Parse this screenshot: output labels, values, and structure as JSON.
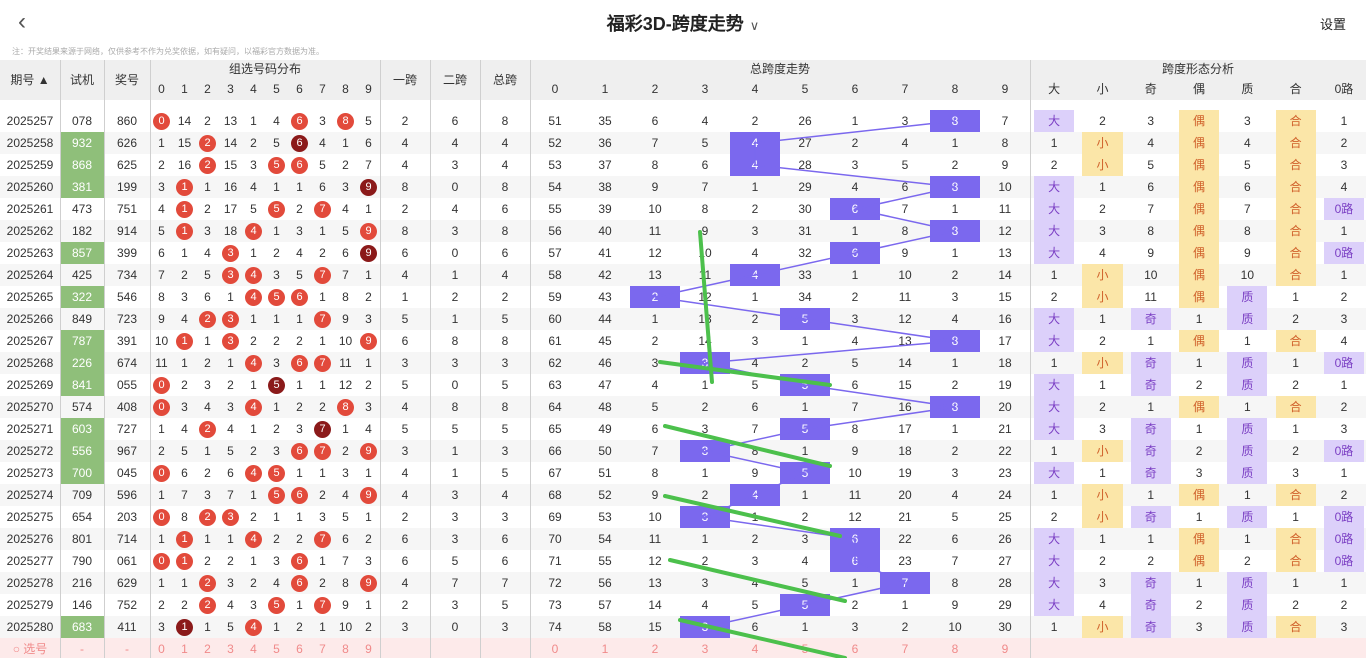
{
  "header": {
    "title": "福彩3D-跨度走势",
    "settings": "设置",
    "back": "<"
  },
  "notice": "注：开奖结果来源于网络，仅供参考不作为兑奖依据，如有疑问，以福彩官方数据为准。",
  "columns": {
    "period": "期号",
    "trial": "试机",
    "prize": "奖号",
    "group_dist": "组选号码分布",
    "span1": "一跨",
    "span2": "二跨",
    "total_span": "总跨",
    "total_trend": "总跨度走势",
    "shape": "跨度形态分析",
    "digits": [
      "0",
      "1",
      "2",
      "3",
      "4",
      "5",
      "6",
      "7",
      "8",
      "9"
    ],
    "shape_cols": [
      "大",
      "小",
      "奇",
      "偶",
      "质",
      "合",
      "0路"
    ]
  },
  "colors": {
    "ball_red": "#e24a3b",
    "ball_dark": "#8b1a1a",
    "trial_green": "#8fbf7a",
    "span_mark": "#7b68ee",
    "shape_purple": "#dcd0fa",
    "shape_yellow": "#fbe6a8",
    "arrow_green": "#4cc04c"
  },
  "rows": [
    {
      "p": "2025257",
      "t": "078",
      "z": "860",
      "tg": false,
      "d": [
        0,
        14,
        2,
        13,
        1,
        4,
        6,
        3,
        8,
        5
      ],
      "s1": 2,
      "s2": 6,
      "ts": 8,
      "tr": [
        51,
        35,
        6,
        4,
        2,
        26,
        1,
        3,
        8,
        7
      ],
      "sh": [
        "大",
        "2",
        "3",
        "偶",
        "3",
        "合",
        "1"
      ]
    },
    {
      "p": "2025258",
      "t": "932",
      "z": "626",
      "tg": true,
      "d": [
        1,
        15,
        2,
        14,
        2,
        5,
        6,
        4,
        1,
        6
      ],
      "s1": 4,
      "s2": 4,
      "ts": 4,
      "tr": [
        52,
        36,
        7,
        5,
        4,
        27,
        2,
        4,
        1,
        8
      ],
      "sh": [
        "1",
        "小",
        "4",
        "偶",
        "4",
        "合",
        "2"
      ]
    },
    {
      "p": "2025259",
      "t": "868",
      "z": "625",
      "tg": true,
      "d": [
        2,
        16,
        2,
        15,
        3,
        5,
        6,
        5,
        2,
        7
      ],
      "s1": 4,
      "s2": 3,
      "ts": 4,
      "tr": [
        53,
        37,
        8,
        6,
        4,
        28,
        3,
        5,
        2,
        9
      ],
      "sh": [
        "2",
        "小",
        "5",
        "偶",
        "5",
        "合",
        "3"
      ]
    },
    {
      "p": "2025260",
      "t": "381",
      "z": "199",
      "tg": true,
      "d": [
        3,
        1,
        1,
        16,
        4,
        1,
        1,
        6,
        3,
        9
      ],
      "s1": 8,
      "s2": 0,
      "ts": 8,
      "tr": [
        54,
        38,
        9,
        7,
        1,
        29,
        4,
        6,
        8,
        10
      ],
      "sh": [
        "大",
        "1",
        "6",
        "偶",
        "6",
        "合",
        "4"
      ]
    },
    {
      "p": "2025261",
      "t": "473",
      "z": "751",
      "tg": false,
      "d": [
        4,
        1,
        2,
        17,
        5,
        5,
        2,
        7,
        4,
        1
      ],
      "s1": 2,
      "s2": 4,
      "ts": 6,
      "tr": [
        55,
        39,
        10,
        8,
        2,
        30,
        6,
        7,
        1,
        11
      ],
      "sh": [
        "大",
        "2",
        "7",
        "偶",
        "7",
        "合",
        "0路"
      ]
    },
    {
      "p": "2025262",
      "t": "182",
      "z": "914",
      "tg": false,
      "d": [
        5,
        1,
        3,
        18,
        4,
        1,
        3,
        1,
        5,
        9
      ],
      "s1": 8,
      "s2": 3,
      "ts": 8,
      "tr": [
        56,
        40,
        11,
        9,
        3,
        31,
        1,
        8,
        8,
        12
      ],
      "sh": [
        "大",
        "3",
        "8",
        "偶",
        "8",
        "合",
        "1"
      ]
    },
    {
      "p": "2025263",
      "t": "857",
      "z": "399",
      "tg": true,
      "d": [
        6,
        1,
        4,
        3,
        1,
        2,
        4,
        2,
        6,
        9
      ],
      "s1": 6,
      "s2": 0,
      "ts": 6,
      "tr": [
        57,
        41,
        12,
        10,
        4,
        32,
        6,
        9,
        1,
        13
      ],
      "sh": [
        "大",
        "4",
        "9",
        "偶",
        "9",
        "合",
        "0路"
      ]
    },
    {
      "p": "2025264",
      "t": "425",
      "z": "734",
      "tg": false,
      "d": [
        7,
        2,
        5,
        3,
        4,
        3,
        5,
        7,
        7,
        1
      ],
      "s1": 4,
      "s2": 1,
      "ts": 4,
      "tr": [
        58,
        42,
        13,
        11,
        4,
        33,
        1,
        10,
        2,
        14
      ],
      "sh": [
        "1",
        "小",
        "10",
        "偶",
        "10",
        "合",
        "1"
      ]
    },
    {
      "p": "2025265",
      "t": "322",
      "z": "546",
      "tg": true,
      "d": [
        8,
        3,
        6,
        1,
        4,
        5,
        6,
        1,
        8,
        2
      ],
      "s1": 1,
      "s2": 2,
      "ts": 2,
      "tr": [
        59,
        43,
        2,
        12,
        1,
        34,
        2,
        11,
        3,
        15
      ],
      "sh": [
        "2",
        "小",
        "11",
        "偶",
        "质",
        "1",
        "2"
      ]
    },
    {
      "p": "2025266",
      "t": "849",
      "z": "723",
      "tg": false,
      "d": [
        9,
        4,
        2,
        3,
        1,
        1,
        1,
        7,
        9,
        3
      ],
      "s1": 5,
      "s2": 1,
      "ts": 5,
      "tr": [
        60,
        44,
        1,
        13,
        2,
        5,
        3,
        12,
        4,
        16
      ],
      "sh": [
        "大",
        "1",
        "奇",
        "1",
        "质",
        "2",
        "3"
      ]
    },
    {
      "p": "2025267",
      "t": "787",
      "z": "391",
      "tg": true,
      "d": [
        10,
        1,
        1,
        3,
        2,
        2,
        2,
        1,
        10,
        9
      ],
      "s1": 6,
      "s2": 8,
      "ts": 8,
      "tr": [
        61,
        45,
        2,
        14,
        3,
        1,
        4,
        13,
        8,
        17
      ],
      "sh": [
        "大",
        "2",
        "1",
        "偶",
        "1",
        "合",
        "4"
      ]
    },
    {
      "p": "2025268",
      "t": "226",
      "z": "674",
      "tg": true,
      "d": [
        11,
        1,
        2,
        1,
        4,
        3,
        6,
        7,
        11,
        1
      ],
      "s1": 3,
      "s2": 3,
      "ts": 3,
      "tr": [
        62,
        46,
        3,
        3,
        4,
        2,
        5,
        14,
        1,
        18
      ],
      "sh": [
        "1",
        "小",
        "奇",
        "1",
        "质",
        "1",
        "0路"
      ]
    },
    {
      "p": "2025269",
      "t": "841",
      "z": "055",
      "tg": true,
      "d": [
        0,
        2,
        3,
        2,
        1,
        5,
        1,
        1,
        12,
        2
      ],
      "s1": 5,
      "s2": 0,
      "ts": 5,
      "tr": [
        63,
        47,
        4,
        1,
        5,
        5,
        6,
        15,
        2,
        19
      ],
      "sh": [
        "大",
        "1",
        "奇",
        "2",
        "质",
        "2",
        "1"
      ]
    },
    {
      "p": "2025270",
      "t": "574",
      "z": "408",
      "tg": false,
      "d": [
        0,
        3,
        4,
        3,
        4,
        1,
        2,
        2,
        8,
        3
      ],
      "s1": 4,
      "s2": 8,
      "ts": 8,
      "tr": [
        64,
        48,
        5,
        2,
        6,
        1,
        7,
        16,
        8,
        20
      ],
      "sh": [
        "大",
        "2",
        "1",
        "偶",
        "1",
        "合",
        "2"
      ]
    },
    {
      "p": "2025271",
      "t": "603",
      "z": "727",
      "tg": true,
      "d": [
        1,
        4,
        2,
        4,
        1,
        2,
        3,
        7,
        1,
        4
      ],
      "s1": 5,
      "s2": 5,
      "ts": 5,
      "tr": [
        65,
        49,
        6,
        3,
        7,
        5,
        8,
        17,
        1,
        21
      ],
      "sh": [
        "大",
        "3",
        "奇",
        "1",
        "质",
        "1",
        "3"
      ]
    },
    {
      "p": "2025272",
      "t": "556",
      "z": "967",
      "tg": true,
      "d": [
        2,
        5,
        1,
        5,
        2,
        3,
        6,
        7,
        2,
        9
      ],
      "s1": 3,
      "s2": 1,
      "ts": 3,
      "tr": [
        66,
        50,
        7,
        3,
        8,
        1,
        9,
        18,
        2,
        22
      ],
      "sh": [
        "1",
        "小",
        "奇",
        "2",
        "质",
        "2",
        "0路"
      ]
    },
    {
      "p": "2025273",
      "t": "700",
      "z": "045",
      "tg": true,
      "d": [
        0,
        6,
        2,
        6,
        4,
        5,
        1,
        1,
        3,
        1
      ],
      "s1": 4,
      "s2": 1,
      "ts": 5,
      "tr": [
        67,
        51,
        8,
        1,
        9,
        5,
        10,
        19,
        3,
        23
      ],
      "sh": [
        "大",
        "1",
        "奇",
        "3",
        "质",
        "3",
        "1"
      ]
    },
    {
      "p": "2025274",
      "t": "709",
      "z": "596",
      "tg": false,
      "d": [
        1,
        7,
        3,
        7,
        1,
        5,
        6,
        2,
        4,
        9
      ],
      "s1": 4,
      "s2": 3,
      "ts": 4,
      "tr": [
        68,
        52,
        9,
        2,
        4,
        1,
        11,
        20,
        4,
        24
      ],
      "sh": [
        "1",
        "小",
        "1",
        "偶",
        "1",
        "合",
        "2"
      ]
    },
    {
      "p": "2025275",
      "t": "654",
      "z": "203",
      "tg": false,
      "d": [
        0,
        8,
        2,
        3,
        2,
        1,
        1,
        3,
        5,
        1
      ],
      "s1": 2,
      "s2": 3,
      "ts": 3,
      "tr": [
        69,
        53,
        10,
        3,
        1,
        2,
        12,
        21,
        5,
        25
      ],
      "sh": [
        "2",
        "小",
        "奇",
        "1",
        "质",
        "1",
        "0路"
      ]
    },
    {
      "p": "2025276",
      "t": "801",
      "z": "714",
      "tg": false,
      "d": [
        1,
        1,
        1,
        1,
        4,
        2,
        2,
        7,
        6,
        2
      ],
      "s1": 6,
      "s2": 3,
      "ts": 6,
      "tr": [
        70,
        54,
        11,
        1,
        2,
        3,
        6,
        22,
        6,
        26
      ],
      "sh": [
        "大",
        "1",
        "1",
        "偶",
        "1",
        "合",
        "0路"
      ]
    },
    {
      "p": "2025277",
      "t": "790",
      "z": "061",
      "tg": false,
      "d": [
        0,
        1,
        2,
        2,
        1,
        3,
        6,
        1,
        7,
        3
      ],
      "s1": 6,
      "s2": 5,
      "ts": 6,
      "tr": [
        71,
        55,
        12,
        2,
        3,
        4,
        6,
        23,
        7,
        27
      ],
      "sh": [
        "大",
        "2",
        "2",
        "偶",
        "2",
        "合",
        "0路"
      ]
    },
    {
      "p": "2025278",
      "t": "216",
      "z": "629",
      "tg": false,
      "d": [
        1,
        1,
        2,
        3,
        2,
        4,
        6,
        2,
        8,
        9
      ],
      "s1": 4,
      "s2": 7,
      "ts": 7,
      "tr": [
        72,
        56,
        13,
        3,
        4,
        5,
        1,
        7,
        8,
        28
      ],
      "sh": [
        "大",
        "3",
        "奇",
        "1",
        "质",
        "1",
        "1"
      ]
    },
    {
      "p": "2025279",
      "t": "146",
      "z": "752",
      "tg": false,
      "d": [
        2,
        2,
        2,
        4,
        3,
        5,
        1,
        7,
        9,
        1
      ],
      "s1": 2,
      "s2": 3,
      "ts": 5,
      "tr": [
        73,
        57,
        14,
        4,
        5,
        5,
        2,
        1,
        9,
        29
      ],
      "sh": [
        "大",
        "4",
        "奇",
        "2",
        "质",
        "2",
        "2"
      ]
    },
    {
      "p": "2025280",
      "t": "683",
      "z": "411",
      "tg": true,
      "d": [
        3,
        1,
        1,
        5,
        4,
        1,
        2,
        1,
        10,
        2
      ],
      "s1": 3,
      "s2": 0,
      "ts": 3,
      "tr": [
        74,
        58,
        15,
        3,
        6,
        1,
        3,
        2,
        10,
        30
      ],
      "sh": [
        "1",
        "小",
        "奇",
        "3",
        "质",
        "合",
        "3"
      ]
    }
  ],
  "select_row": {
    "label": "选号",
    "dash": "-",
    "nums": [
      "0",
      "1",
      "2",
      "3",
      "4",
      "5",
      "6",
      "7",
      "8",
      "9"
    ]
  }
}
